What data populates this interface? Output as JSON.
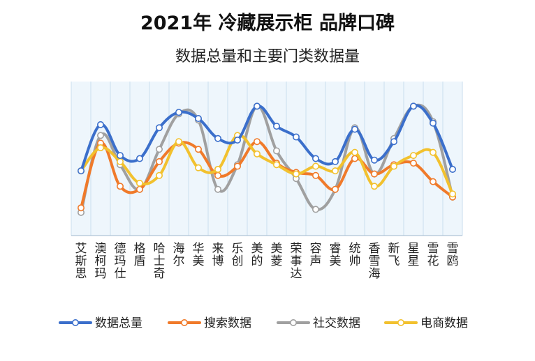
{
  "chart_data": {
    "type": "line",
    "title": "2021年 冷藏展示柜  品牌口碑",
    "subtitle": "数据总量和主要门类数据量",
    "categories": [
      "艾斯思",
      "澳柯玛",
      "德玛仕",
      "格盾",
      "哈士奇",
      "海尔",
      "华美",
      "来博",
      "乐创",
      "美的",
      "美菱",
      "荣事达",
      "容声",
      "睿美",
      "统帅",
      "香雪海",
      "新飞",
      "星星",
      "雪花",
      "雪鸥"
    ],
    "series": [
      {
        "name": "数据总量",
        "color": "#3B6FCB",
        "values": [
          42,
          72,
          52,
          50,
          70,
          80,
          76,
          63,
          62,
          84,
          71,
          64,
          50,
          48,
          69,
          49,
          61,
          84,
          73,
          43
        ]
      },
      {
        "name": "搜索数据",
        "color": "#F07A2A",
        "values": [
          18,
          60,
          32,
          30,
          48,
          60,
          56,
          39,
          45,
          61,
          47,
          41,
          39,
          30,
          50,
          40,
          46,
          47,
          35,
          25
        ]
      },
      {
        "name": "社交数据",
        "color": "#A0A0A0",
        "values": [
          15,
          65,
          46,
          30,
          56,
          79,
          75,
          30,
          46,
          84,
          55,
          37,
          17,
          30,
          70,
          40,
          63,
          84,
          74,
          25
        ]
      },
      {
        "name": "电商数据",
        "color": "#F2C12E",
        "values": [
          42,
          57,
          48,
          34,
          39,
          61,
          44,
          43,
          65,
          53,
          46,
          40,
          45,
          42,
          54,
          32,
          45,
          52,
          54,
          27
        ]
      }
    ],
    "ylim": [
      0,
      100
    ],
    "grid": true,
    "legend_position": "bottom"
  }
}
